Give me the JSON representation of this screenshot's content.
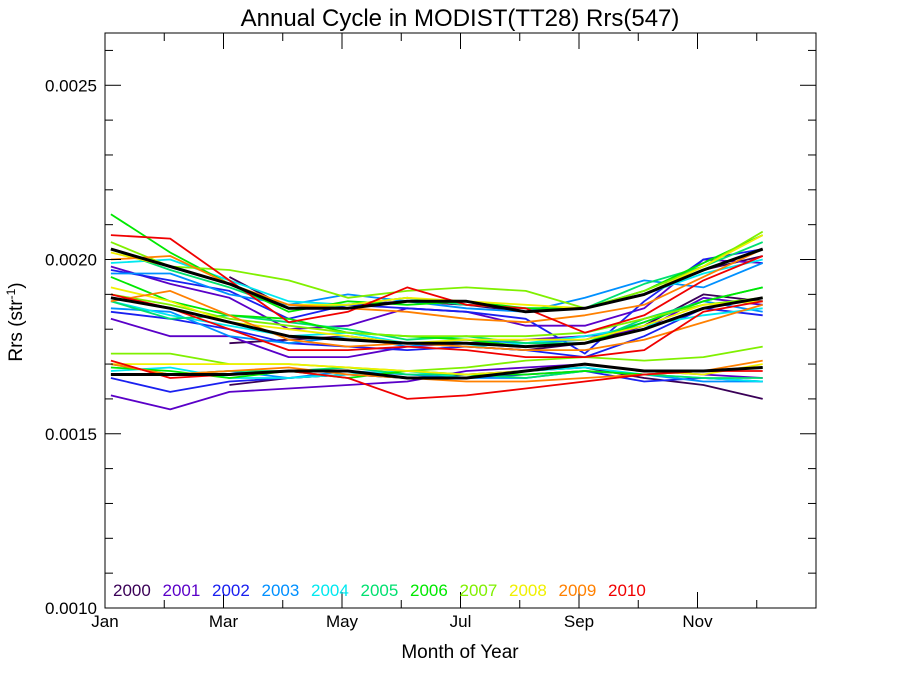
{
  "chart_data": {
    "type": "line",
    "title": "Annual Cycle in MODIST(TT28) Rrs(547)",
    "xlabel": "Month of Year",
    "ylabel": {
      "base": "Rrs (str",
      "sup": "-1",
      "tail": ")"
    },
    "xlim": [
      1,
      13
    ],
    "ylim": [
      0.001,
      0.00265
    ],
    "x_ticks": [
      {
        "value": 1,
        "label": "Jan"
      },
      {
        "value": 3,
        "label": "Mar"
      },
      {
        "value": 5,
        "label": "May"
      },
      {
        "value": 7,
        "label": "Jul"
      },
      {
        "value": 9,
        "label": "Sep"
      },
      {
        "value": 11,
        "label": "Nov"
      }
    ],
    "y_ticks": [
      {
        "value": 0.001,
        "label": "0.0010"
      },
      {
        "value": 0.0015,
        "label": "0.0015"
      },
      {
        "value": 0.002,
        "label": "0.0020"
      },
      {
        "value": 0.0025,
        "label": "0.0025"
      }
    ],
    "grid": false,
    "legend_position": "bottom-left",
    "months": [
      1.1,
      2.1,
      3.1,
      4.1,
      5.1,
      6.1,
      7.1,
      8.1,
      9.1,
      10.1,
      11.1,
      12.1
    ],
    "series": [
      {
        "name": "2000",
        "color": "#3a0057",
        "lines": [
          [
            null,
            null,
            0.00164,
            0.00166,
            0.00167,
            0.00166,
            0.00167,
            0.00168,
            0.00169,
            0.00166,
            0.00164,
            0.0016
          ],
          [
            null,
            null,
            0.00176,
            0.00177,
            0.00178,
            0.00176,
            0.00175,
            0.00174,
            0.00176,
            0.00181,
            0.0019,
            0.00188
          ],
          [
            null,
            null,
            0.00195,
            0.00186,
            0.00187,
            0.00188,
            0.00187,
            0.00185,
            0.00186,
            0.0019,
            0.00197,
            0.00201
          ]
        ]
      },
      {
        "name": "2001",
        "color": "#5a00c8",
        "lines": [
          [
            0.00161,
            0.00157,
            0.00162,
            0.00163,
            0.00164,
            0.00165,
            0.00168,
            0.00169,
            0.0017,
            0.00168,
            0.00167,
            0.00166
          ],
          [
            0.00183,
            0.00178,
            0.00178,
            0.00172,
            0.00172,
            0.00175,
            0.00176,
            0.00177,
            0.00178,
            0.0018,
            0.00189,
            0.00187
          ],
          [
            0.00198,
            0.00193,
            0.00189,
            0.0018,
            0.00181,
            0.00186,
            0.00185,
            0.00181,
            0.00181,
            0.00186,
            0.002,
            0.00199
          ]
        ]
      },
      {
        "name": "2002",
        "color": "#1a20f0",
        "lines": [
          [
            0.00166,
            0.00162,
            0.00165,
            0.00166,
            0.00167,
            0.00166,
            0.00166,
            0.00167,
            0.00168,
            0.00165,
            0.00166,
            0.00165
          ],
          [
            0.00185,
            0.00183,
            0.0018,
            0.00176,
            0.00175,
            0.00174,
            0.00175,
            0.00174,
            0.00172,
            0.00178,
            0.00186,
            0.00184
          ],
          [
            0.00197,
            0.00194,
            0.00191,
            0.00183,
            0.00187,
            0.00186,
            0.00185,
            0.00183,
            0.00173,
            0.00188,
            0.002,
            0.00203
          ]
        ]
      },
      {
        "name": "2003",
        "color": "#0090ff",
        "lines": [
          [
            0.00167,
            0.00167,
            0.00168,
            0.00166,
            0.00168,
            0.00167,
            0.00166,
            0.00166,
            0.00168,
            0.00167,
            0.00165,
            0.00165
          ],
          [
            0.00186,
            0.00185,
            0.00178,
            0.00176,
            0.00178,
            0.00175,
            0.00177,
            0.00176,
            0.00177,
            0.00182,
            0.00188,
            0.00185
          ],
          [
            0.00196,
            0.00196,
            0.0019,
            0.00187,
            0.0019,
            0.00188,
            0.00186,
            0.00185,
            0.00189,
            0.00194,
            0.00192,
            0.00199
          ]
        ]
      },
      {
        "name": "2004",
        "color": "#00e8f0",
        "lines": [
          [
            0.00168,
            0.00169,
            0.00166,
            0.00166,
            0.00167,
            0.00168,
            0.00166,
            0.00168,
            0.00169,
            0.00167,
            0.00166,
            0.00165
          ],
          [
            0.00188,
            0.00184,
            0.00181,
            0.00178,
            0.00179,
            0.00176,
            0.00175,
            0.00176,
            0.00178,
            0.00181,
            0.00184,
            0.00186
          ],
          [
            0.00199,
            0.002,
            0.00194,
            0.00188,
            0.00187,
            0.00189,
            0.00187,
            0.00186,
            0.00186,
            0.0019,
            0.00196,
            0.002
          ]
        ]
      },
      {
        "name": "2005",
        "color": "#00e070",
        "lines": [
          [
            0.0017,
            0.00167,
            0.00168,
            0.00168,
            0.00169,
            0.00167,
            0.00167,
            0.00166,
            0.00168,
            0.00167,
            0.00166,
            0.00166
          ],
          [
            0.00188,
            0.00183,
            0.00184,
            0.00182,
            0.0018,
            0.00177,
            0.00178,
            0.00176,
            0.00176,
            0.00183,
            0.00188,
            0.00192
          ],
          [
            0.00203,
            0.00197,
            0.00192,
            0.00186,
            0.00187,
            0.00189,
            0.00187,
            0.00186,
            0.00186,
            0.00193,
            0.00198,
            0.00205
          ]
        ]
      },
      {
        "name": "2006",
        "color": "#00e800",
        "lines": [
          [
            0.00169,
            0.00168,
            0.00166,
            0.00168,
            0.00166,
            0.00168,
            0.00167,
            0.00167,
            0.00168,
            0.00167,
            0.00168,
            0.00169
          ],
          [
            0.00195,
            0.00188,
            0.00184,
            0.00183,
            0.00179,
            0.00178,
            0.00177,
            0.00175,
            0.00176,
            0.00182,
            0.00188,
            0.00192
          ],
          [
            0.00213,
            0.00202,
            0.00193,
            0.00185,
            0.00188,
            0.00187,
            0.00188,
            0.00186,
            0.00186,
            0.00191,
            0.00199,
            0.00207
          ]
        ]
      },
      {
        "name": "2007",
        "color": "#80f000",
        "lines": [
          [
            0.00173,
            0.00173,
            0.0017,
            0.0017,
            0.00169,
            0.00168,
            0.00169,
            0.00171,
            0.00172,
            0.00171,
            0.00172,
            0.00175
          ],
          [
            0.0019,
            0.00187,
            0.00183,
            0.00181,
            0.00179,
            0.00178,
            0.00178,
            0.00178,
            0.00179,
            0.00183,
            0.00187,
            0.00189
          ],
          [
            0.00205,
            0.00198,
            0.00197,
            0.00194,
            0.00189,
            0.00191,
            0.00192,
            0.00191,
            0.00186,
            0.00191,
            0.00198,
            0.00208
          ]
        ]
      },
      {
        "name": "2008",
        "color": "#f0f000",
        "lines": [
          [
            0.0017,
            0.0017,
            0.0017,
            0.0017,
            0.00169,
            0.00168,
            0.00167,
            0.00168,
            0.0017,
            0.00168,
            0.00167,
            0.0017
          ],
          [
            0.00192,
            0.00188,
            0.00182,
            0.0018,
            0.00178,
            0.00176,
            0.00177,
            0.00177,
            0.00177,
            0.00181,
            0.00187,
            0.00188
          ],
          [
            0.00202,
            0.00198,
            0.00193,
            0.00187,
            0.00187,
            0.00189,
            0.00188,
            0.00187,
            0.00186,
            0.0019,
            0.00198,
            0.00207
          ]
        ]
      },
      {
        "name": "2009",
        "color": "#ff8000",
        "lines": [
          [
            0.0017,
            0.00167,
            0.00168,
            0.00169,
            0.00167,
            0.00166,
            0.00165,
            0.00165,
            0.00166,
            0.00167,
            0.00168,
            0.00171
          ],
          [
            0.00188,
            0.00191,
            0.00184,
            0.00177,
            0.00175,
            0.00176,
            0.00175,
            0.00174,
            0.00174,
            0.00177,
            0.00182,
            0.00187
          ],
          [
            0.002,
            0.00201,
            0.00193,
            0.00187,
            0.00186,
            0.00185,
            0.00183,
            0.00182,
            0.00184,
            0.00187,
            0.00195,
            0.00203
          ]
        ]
      },
      {
        "name": "2010",
        "color": "#f00000",
        "lines": [
          [
            0.00171,
            0.00166,
            0.00167,
            0.00168,
            0.00166,
            0.0016,
            0.00161,
            0.00163,
            0.00165,
            0.00167,
            0.00168,
            0.00168
          ],
          [
            0.0019,
            0.00186,
            0.0018,
            0.00174,
            0.00174,
            0.00175,
            0.00174,
            0.00172,
            0.00172,
            0.00174,
            0.00185,
            0.00188
          ],
          [
            0.00207,
            0.00206,
            0.00194,
            0.00182,
            0.00185,
            0.00192,
            0.00187,
            0.00186,
            0.00179,
            0.00184,
            0.00194,
            0.00201
          ]
        ]
      },
      {
        "name": "",
        "color": "#000000",
        "bold": true,
        "lines": [
          [
            0.00167,
            0.00167,
            0.00167,
            0.00168,
            0.00168,
            0.00166,
            0.00166,
            0.00168,
            0.0017,
            0.00168,
            0.00168,
            0.00169
          ],
          [
            0.00189,
            0.00186,
            0.00182,
            0.00178,
            0.00177,
            0.00176,
            0.00176,
            0.00175,
            0.00176,
            0.0018,
            0.00186,
            0.00189
          ],
          [
            0.00203,
            0.00198,
            0.00193,
            0.00186,
            0.00186,
            0.00188,
            0.00188,
            0.00185,
            0.00186,
            0.0019,
            0.00197,
            0.00203
          ]
        ]
      }
    ]
  }
}
